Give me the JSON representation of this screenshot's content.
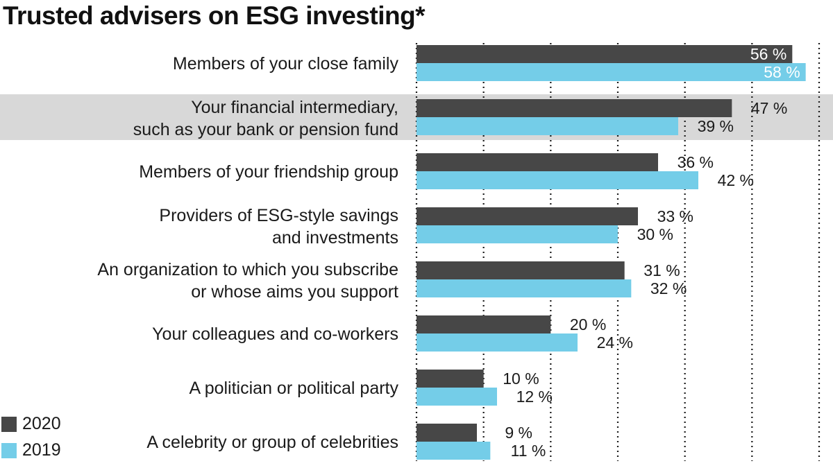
{
  "chart_data": {
    "type": "bar",
    "orientation": "horizontal",
    "title": "Trusted advisers on ESG investing*",
    "categories": [
      [
        "Members of your close family"
      ],
      [
        "Your financial intermediary,",
        "such as your bank or pension fund"
      ],
      [
        "Members of your friendship group"
      ],
      [
        "Providers of ESG-style savings",
        "and investments"
      ],
      [
        "An organization to which you subscribe",
        "or whose aims you support"
      ],
      [
        "Your colleagues and co-workers"
      ],
      [
        "A politician or political party"
      ],
      [
        "A celebrity or group of celebrities"
      ]
    ],
    "series": [
      {
        "name": "2020",
        "color": "#474747",
        "values": [
          56,
          47,
          36,
          33,
          31,
          20,
          10,
          9
        ]
      },
      {
        "name": "2019",
        "color": "#74cde8",
        "values": [
          58,
          39,
          42,
          30,
          32,
          24,
          12,
          11
        ]
      }
    ],
    "value_suffix": " %",
    "xlim": [
      0,
      60
    ],
    "grid": "dotted vertical",
    "highlighted_category": 1,
    "highlight_color": "#d8d8d8",
    "legend": "bottom-left"
  }
}
